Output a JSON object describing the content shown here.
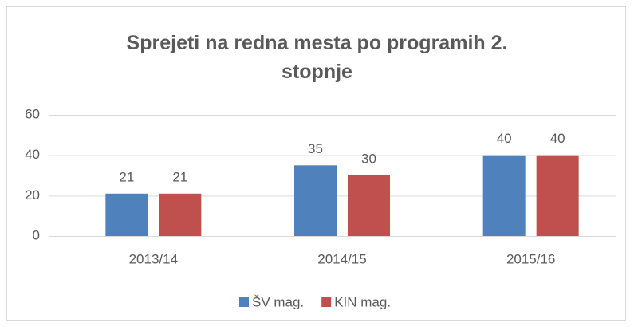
{
  "chart_data": {
    "type": "bar",
    "title": "Sprejeti na redna mesta po programih 2. stopnje",
    "categories": [
      "2013/14",
      "2014/15",
      "2015/16"
    ],
    "series": [
      {
        "name": "ŠV mag.",
        "color": "#4f81bd",
        "values": [
          21,
          35,
          40
        ]
      },
      {
        "name": "KIN mag.",
        "color": "#c0504d",
        "values": [
          21,
          30,
          40
        ]
      }
    ],
    "ylim": [
      0,
      60
    ],
    "yticks": [
      0,
      20,
      40,
      60
    ],
    "grid": true,
    "legend": "bottom",
    "data_labels": true
  }
}
